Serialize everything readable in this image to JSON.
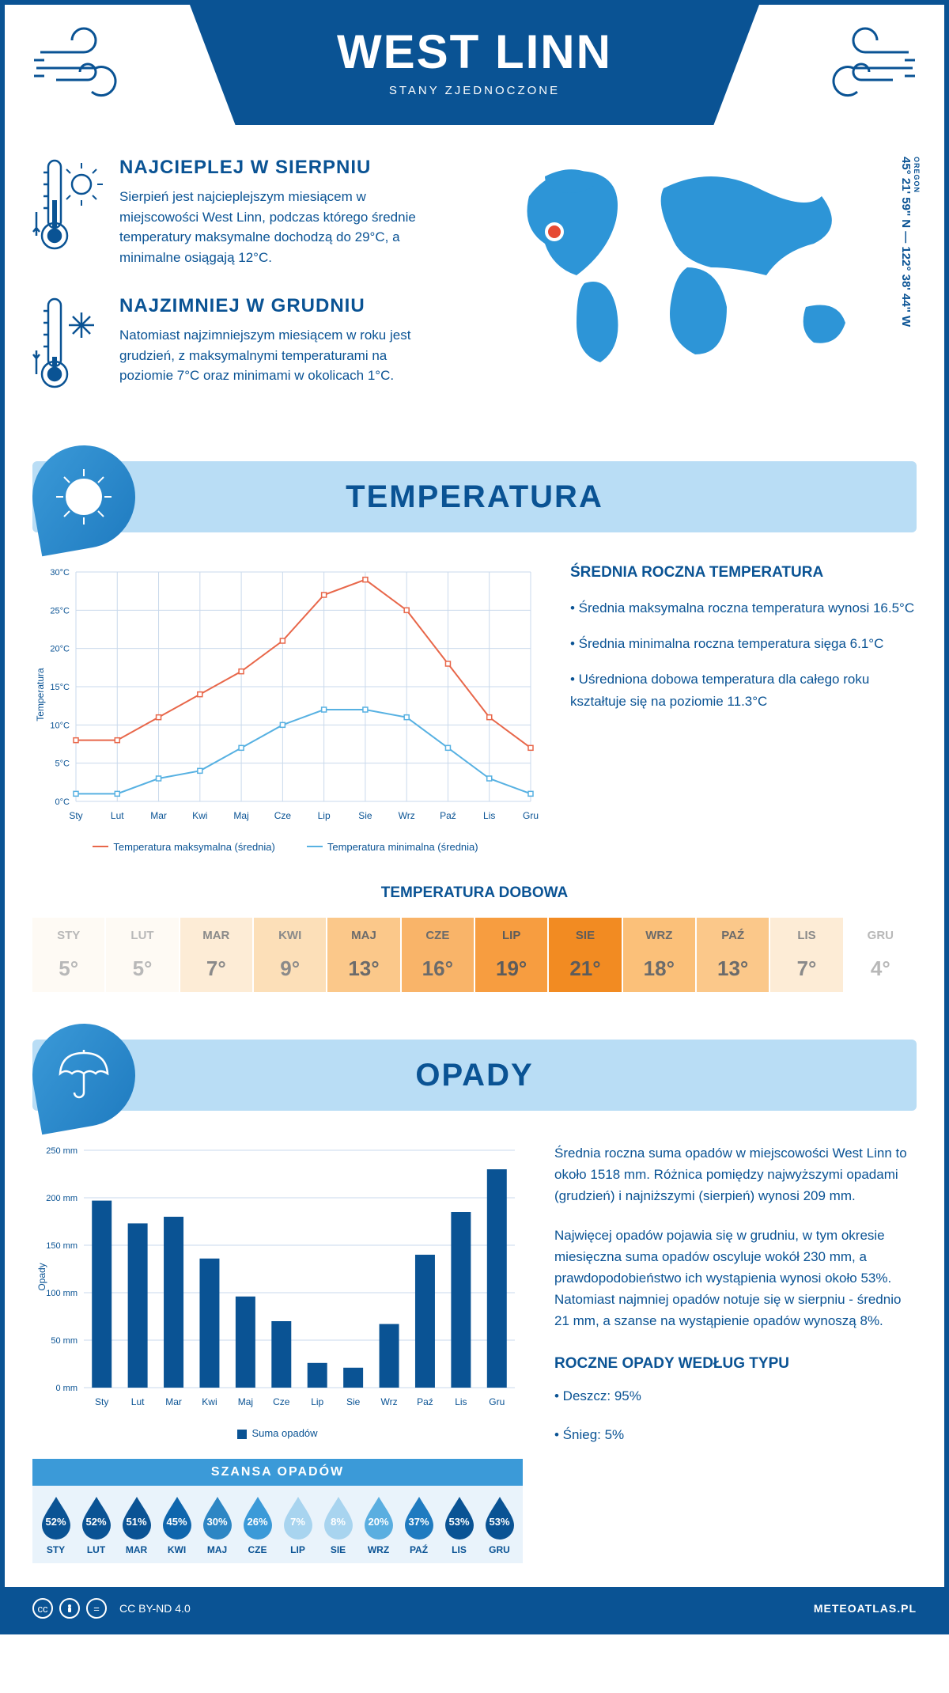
{
  "header": {
    "city": "WEST LINN",
    "country": "STANY ZJEDNOCZONE"
  },
  "location": {
    "region": "OREGON",
    "coords": "45° 21' 59'' N — 122° 38' 44'' W",
    "marker_color": "#e64a33",
    "map_color": "#2d95d7"
  },
  "facts": {
    "hot": {
      "title": "NAJCIEPLEJ W SIERPNIU",
      "text": "Sierpień jest najcieplejszym miesiącem w miejscowości West Linn, podczas którego średnie temperatury maksymalne dochodzą do 29°C, a minimalne osiągają 12°C."
    },
    "cold": {
      "title": "NAJZIMNIEJ W GRUDNIU",
      "text": "Natomiast najzimniejszym miesiącem w roku jest grudzień, z maksymalnymi temperaturami na poziomie 7°C oraz minimami w okolicach 1°C."
    }
  },
  "temperature": {
    "section_title": "TEMPERATURA",
    "chart": {
      "type": "line",
      "months": [
        "Sty",
        "Lut",
        "Mar",
        "Kwi",
        "Maj",
        "Cze",
        "Lip",
        "Sie",
        "Wrz",
        "Paź",
        "Lis",
        "Gru"
      ],
      "series_max": {
        "label": "Temperatura maksymalna (średnia)",
        "color": "#e8674a",
        "values": [
          8,
          8,
          11,
          14,
          17,
          21,
          27,
          29,
          25,
          18,
          11,
          7
        ]
      },
      "series_min": {
        "label": "Temperatura minimalna (średnia)",
        "color": "#57b1e2",
        "values": [
          1,
          1,
          3,
          4,
          7,
          10,
          12,
          12,
          11,
          7,
          3,
          1
        ]
      },
      "ylabel": "Temperatura",
      "ylim": [
        0,
        30
      ],
      "ytick_step": 5,
      "ytick_suffix": "°C",
      "grid_color": "#c9d9ec",
      "background_color": "#ffffff",
      "marker": "square",
      "line_width": 2
    },
    "annual": {
      "heading": "ŚREDNIA ROCZNA TEMPERATURA",
      "bullet1": "• Średnia maksymalna roczna temperatura wynosi 16.5°C",
      "bullet2": "• Średnia minimalna roczna temperatura sięga 6.1°C",
      "bullet3": "• Uśredniona dobowa temperatura dla całego roku kształtuje się na poziomie 11.3°C"
    },
    "daily": {
      "title": "TEMPERATURA DOBOWA",
      "months": [
        "STY",
        "LUT",
        "MAR",
        "KWI",
        "MAJ",
        "CZE",
        "LIP",
        "SIE",
        "WRZ",
        "PAŹ",
        "LIS",
        "GRU"
      ],
      "values": [
        "5°",
        "5°",
        "7°",
        "9°",
        "13°",
        "16°",
        "19°",
        "21°",
        "18°",
        "13°",
        "7°",
        "4°"
      ],
      "cell_colors": [
        "#fefaf4",
        "#fefaf4",
        "#fdecd6",
        "#fcdfb8",
        "#fbc88a",
        "#f9b469",
        "#f79d40",
        "#f28b22",
        "#fbc079",
        "#fbc88a",
        "#fdecd6",
        "#ffffff"
      ],
      "text_colors": [
        "#b8b8b8",
        "#b8b8b8",
        "#8a8a8a",
        "#8a8a8a",
        "#6b6b6b",
        "#6b6b6b",
        "#5c5c5c",
        "#5c5c5c",
        "#6b6b6b",
        "#6b6b6b",
        "#8a8a8a",
        "#b8b8b8"
      ]
    }
  },
  "precipitation": {
    "section_title": "OPADY",
    "chart": {
      "type": "bar",
      "months": [
        "Sty",
        "Lut",
        "Mar",
        "Kwi",
        "Maj",
        "Cze",
        "Lip",
        "Sie",
        "Wrz",
        "Paź",
        "Lis",
        "Gru"
      ],
      "values": [
        197,
        173,
        180,
        136,
        96,
        70,
        26,
        21,
        67,
        140,
        185,
        230
      ],
      "bar_color": "#0a5394",
      "ylabel": "Opady",
      "ylim": [
        0,
        250
      ],
      "ytick_step": 50,
      "ytick_suffix": " mm",
      "grid_color": "#c9d9ec",
      "background_color": "#ffffff",
      "legend_label": "Suma opadów",
      "bar_width": 0.55
    },
    "para1": "Średnia roczna suma opadów w miejscowości West Linn to około 1518 mm. Różnica pomiędzy najwyższymi opadami (grudzień) i najniższymi (sierpień) wynosi 209 mm.",
    "para2": "Najwięcej opadów pojawia się w grudniu, w tym okresie miesięczna suma opadów oscyluje wokół 230 mm, a prawdopodobieństwo ich wystąpienia wynosi około 53%. Natomiast najmniej opadów notuje się w sierpniu - średnio 21 mm, a szanse na wystąpienie opadów wynoszą 8%.",
    "by_type": {
      "heading": "ROCZNE OPADY WEDŁUG TYPU",
      "rain": "• Deszcz: 95%",
      "snow": "• Śnieg: 5%"
    },
    "chance": {
      "title": "SZANSA OPADÓW",
      "months": [
        "STY",
        "LUT",
        "MAR",
        "KWI",
        "MAJ",
        "CZE",
        "LIP",
        "SIE",
        "WRZ",
        "PAŹ",
        "LIS",
        "GRU"
      ],
      "values": [
        "52%",
        "52%",
        "51%",
        "45%",
        "30%",
        "26%",
        "7%",
        "8%",
        "20%",
        "37%",
        "53%",
        "53%"
      ],
      "drop_colors": [
        "#0a5394",
        "#0a5394",
        "#0a5394",
        "#0f66ad",
        "#2d86c4",
        "#3b9ad8",
        "#a8d4ef",
        "#a8d4ef",
        "#5aaee0",
        "#1f7bc0",
        "#0a5394",
        "#0a5394"
      ]
    }
  },
  "footer": {
    "license": "CC BY-ND 4.0",
    "site": "METEOATLAS.PL"
  },
  "palette": {
    "primary": "#0a5394",
    "light_blue": "#b9ddf5",
    "mid_blue": "#3b9ad8"
  }
}
